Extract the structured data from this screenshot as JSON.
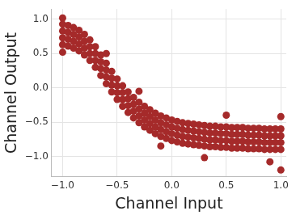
{
  "chart_data": {
    "type": "scatter",
    "x_label": "Channel Input",
    "y_label": "Channel Output",
    "color": "#a52a2a",
    "marker": "circle",
    "grid": true,
    "xlim": [
      -1.1,
      1.05
    ],
    "ylim": [
      -1.3,
      1.15
    ],
    "xticks": [
      {
        "value": -1,
        "label": "−1.0"
      },
      {
        "value": -0.5,
        "label": "−0.5"
      },
      {
        "value": 0,
        "label": "0.0"
      },
      {
        "value": 0.5,
        "label": "0.5"
      },
      {
        "value": 1,
        "label": "1.0"
      }
    ],
    "yticks": [
      {
        "value": -1,
        "label": "−1.0"
      },
      {
        "value": -0.5,
        "label": "−0.5"
      },
      {
        "value": 0,
        "label": "0.0"
      },
      {
        "value": 0.5,
        "label": "0.5"
      },
      {
        "value": 1,
        "label": "1.0"
      }
    ],
    "x": [
      -1.0,
      -1.0,
      -1.0,
      -1.0,
      -0.95,
      -0.95,
      -0.95,
      -0.95,
      -0.9,
      -0.9,
      -0.9,
      -0.9,
      -0.85,
      -0.85,
      -0.85,
      -0.85,
      -0.8,
      -0.8,
      -0.8,
      -0.8,
      -0.75,
      -0.75,
      -0.75,
      -0.75,
      -0.7,
      -0.7,
      -0.7,
      -0.7,
      -0.65,
      -0.65,
      -0.65,
      -0.65,
      -0.6,
      -0.6,
      -0.6,
      -0.6,
      -0.55,
      -0.55,
      -0.55,
      -0.55,
      -0.5,
      -0.5,
      -0.5,
      -0.5,
      -0.45,
      -0.45,
      -0.45,
      -0.45,
      -0.4,
      -0.4,
      -0.4,
      -0.4,
      -0.35,
      -0.35,
      -0.35,
      -0.35,
      -0.3,
      -0.3,
      -0.3,
      -0.3,
      -0.25,
      -0.25,
      -0.25,
      -0.25,
      -0.2,
      -0.2,
      -0.2,
      -0.2,
      -0.15,
      -0.15,
      -0.15,
      -0.15,
      -0.1,
      -0.1,
      -0.1,
      -0.1,
      -0.05,
      -0.05,
      -0.05,
      -0.05,
      0.0,
      0.0,
      0.0,
      0.0,
      0.05,
      0.05,
      0.05,
      0.05,
      0.1,
      0.1,
      0.1,
      0.1,
      0.15,
      0.15,
      0.15,
      0.15,
      0.2,
      0.2,
      0.2,
      0.2,
      0.25,
      0.25,
      0.25,
      0.25,
      0.3,
      0.3,
      0.3,
      0.3,
      0.35,
      0.35,
      0.35,
      0.35,
      0.4,
      0.4,
      0.4,
      0.4,
      0.45,
      0.45,
      0.45,
      0.45,
      0.5,
      0.5,
      0.5,
      0.5,
      0.55,
      0.55,
      0.55,
      0.55,
      0.6,
      0.6,
      0.6,
      0.6,
      0.65,
      0.65,
      0.65,
      0.65,
      0.7,
      0.7,
      0.7,
      0.7,
      0.75,
      0.75,
      0.75,
      0.75,
      0.8,
      0.8,
      0.8,
      0.8,
      0.85,
      0.85,
      0.85,
      0.85,
      0.9,
      0.9,
      0.9,
      0.9,
      0.95,
      0.95,
      0.95,
      0.95,
      1.0,
      1.0,
      1.0,
      1.0,
      -1.0,
      -1.0,
      -0.3,
      0.5,
      1.0,
      1.0,
      0.9,
      0.3,
      -0.1,
      -0.6
    ],
    "values": [
      0.63,
      0.73,
      0.83,
      0.93,
      0.61,
      0.71,
      0.81,
      0.91,
      0.58,
      0.68,
      0.78,
      0.88,
      0.54,
      0.64,
      0.74,
      0.84,
      0.48,
      0.58,
      0.68,
      0.78,
      0.4,
      0.5,
      0.6,
      0.7,
      0.3,
      0.4,
      0.5,
      0.6,
      0.18,
      0.28,
      0.38,
      0.48,
      0.06,
      0.16,
      0.26,
      0.36,
      -0.06,
      0.04,
      0.14,
      0.24,
      -0.17,
      -0.07,
      0.03,
      0.13,
      -0.27,
      -0.17,
      -0.07,
      0.03,
      -0.36,
      -0.26,
      -0.16,
      -0.06,
      -0.44,
      -0.34,
      -0.24,
      -0.14,
      -0.51,
      -0.41,
      -0.31,
      -0.21,
      -0.57,
      -0.47,
      -0.37,
      -0.27,
      -0.62,
      -0.52,
      -0.42,
      -0.32,
      -0.67,
      -0.57,
      -0.47,
      -0.37,
      -0.71,
      -0.61,
      -0.51,
      -0.41,
      -0.74,
      -0.64,
      -0.54,
      -0.44,
      -0.77,
      -0.67,
      -0.57,
      -0.47,
      -0.79,
      -0.69,
      -0.59,
      -0.49,
      -0.81,
      -0.71,
      -0.61,
      -0.51,
      -0.82,
      -0.72,
      -0.62,
      -0.52,
      -0.83,
      -0.73,
      -0.63,
      -0.53,
      -0.84,
      -0.74,
      -0.64,
      -0.54,
      -0.85,
      -0.75,
      -0.65,
      -0.55,
      -0.86,
      -0.76,
      -0.66,
      -0.56,
      -0.86,
      -0.76,
      -0.66,
      -0.56,
      -0.87,
      -0.77,
      -0.67,
      -0.57,
      -0.87,
      -0.77,
      -0.67,
      -0.57,
      -0.88,
      -0.78,
      -0.68,
      -0.58,
      -0.88,
      -0.78,
      -0.68,
      -0.58,
      -0.88,
      -0.78,
      -0.68,
      -0.58,
      -0.89,
      -0.79,
      -0.69,
      -0.59,
      -0.89,
      -0.79,
      -0.69,
      -0.59,
      -0.89,
      -0.79,
      -0.69,
      -0.59,
      -0.9,
      -0.8,
      -0.7,
      -0.6,
      -0.9,
      -0.8,
      -0.7,
      -0.6,
      -0.9,
      -0.8,
      -0.7,
      -0.6,
      -0.9,
      -0.8,
      -0.7,
      -0.6,
      1.02,
      0.52,
      -0.05,
      -0.4,
      -1.2,
      -0.42,
      -1.08,
      -1.02,
      -0.85,
      0.5
    ]
  }
}
